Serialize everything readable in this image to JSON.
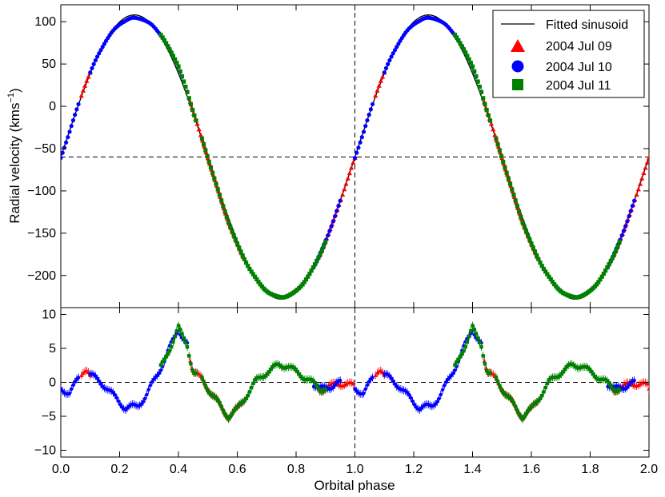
{
  "chart_data": [
    {
      "type": "scatter",
      "panel": "top",
      "ylabel_main": "Radial velocity (kms",
      "ylabel_sup": "−1",
      "ylabel_close": ")",
      "xlim": [
        0.0,
        2.0
      ],
      "ylim": [
        -238,
        120
      ],
      "yticks": [
        100,
        50,
        0,
        -50,
        -100,
        -150,
        -200
      ],
      "ytick_labels": [
        "100",
        "50",
        "0",
        "−50",
        "−100",
        "−150",
        "−200"
      ],
      "gamma": -60,
      "fit": {
        "name": "Fitted sinusoid",
        "gamma": -60,
        "K": 168,
        "color": "#000000"
      },
      "vertical_line_x": 1.0,
      "legend": {
        "placement": "top-right"
      },
      "series": [
        {
          "name": "2004 Jul 09",
          "marker": "triangle",
          "color": "#ff0000",
          "phase_ranges": [
            [
              0.07,
              0.1
            ],
            [
              0.44,
              0.62
            ],
            [
              0.88,
              1.0
            ]
          ]
        },
        {
          "name": "2004 Jul 10",
          "marker": "circle",
          "color": "#0000ff",
          "phase_ranges": [
            [
              0.0,
              0.06
            ],
            [
              0.1,
              0.43
            ],
            [
              0.86,
              0.95
            ]
          ]
        },
        {
          "name": "2004 Jul 11",
          "marker": "square",
          "color": "#008000",
          "phase_ranges": [
            [
              0.34,
              0.46
            ],
            [
              0.48,
              0.9
            ]
          ]
        }
      ]
    },
    {
      "type": "scatter",
      "panel": "bottom",
      "xlabel": "Orbital phase",
      "xlim": [
        0.0,
        2.0
      ],
      "ylim": [
        -11,
        11
      ],
      "xticks": [
        0.0,
        0.2,
        0.4,
        0.6,
        0.8,
        1.0,
        1.2,
        1.4,
        1.6,
        1.8,
        2.0
      ],
      "xtick_labels": [
        "0.0",
        "0.2",
        "0.4",
        "0.6",
        "0.8",
        "1.0",
        "1.2",
        "1.4",
        "1.6",
        "1.8",
        "2.0"
      ],
      "yticks": [
        10,
        5,
        0,
        -5,
        -10
      ],
      "ytick_labels": [
        "10",
        "5",
        "0",
        "−5",
        "−10"
      ],
      "zero_line": 0,
      "residual_profile": {
        "phase": [
          0.0,
          0.03,
          0.06,
          0.09,
          0.12,
          0.15,
          0.18,
          0.22,
          0.26,
          0.29,
          0.32,
          0.35,
          0.38,
          0.4,
          0.41,
          0.43,
          0.45,
          0.48,
          0.51,
          0.55,
          0.57,
          0.6,
          0.63,
          0.66,
          0.7,
          0.74,
          0.77,
          0.8,
          0.84,
          0.88,
          0.91,
          0.94,
          0.97,
          1.0
        ],
        "value": [
          -1.0,
          -1.5,
          0.5,
          1.5,
          0.5,
          -0.5,
          -2.0,
          -3.8,
          -3.5,
          -2.0,
          0.5,
          3.0,
          6.0,
          8.0,
          7.0,
          5.5,
          1.5,
          0.5,
          -1.5,
          -4.0,
          -5.0,
          -4.0,
          -2.0,
          0.0,
          1.5,
          2.5,
          2.5,
          1.5,
          0.5,
          -1.0,
          -0.8,
          0.0,
          -0.3,
          -0.5
        ]
      }
    }
  ]
}
